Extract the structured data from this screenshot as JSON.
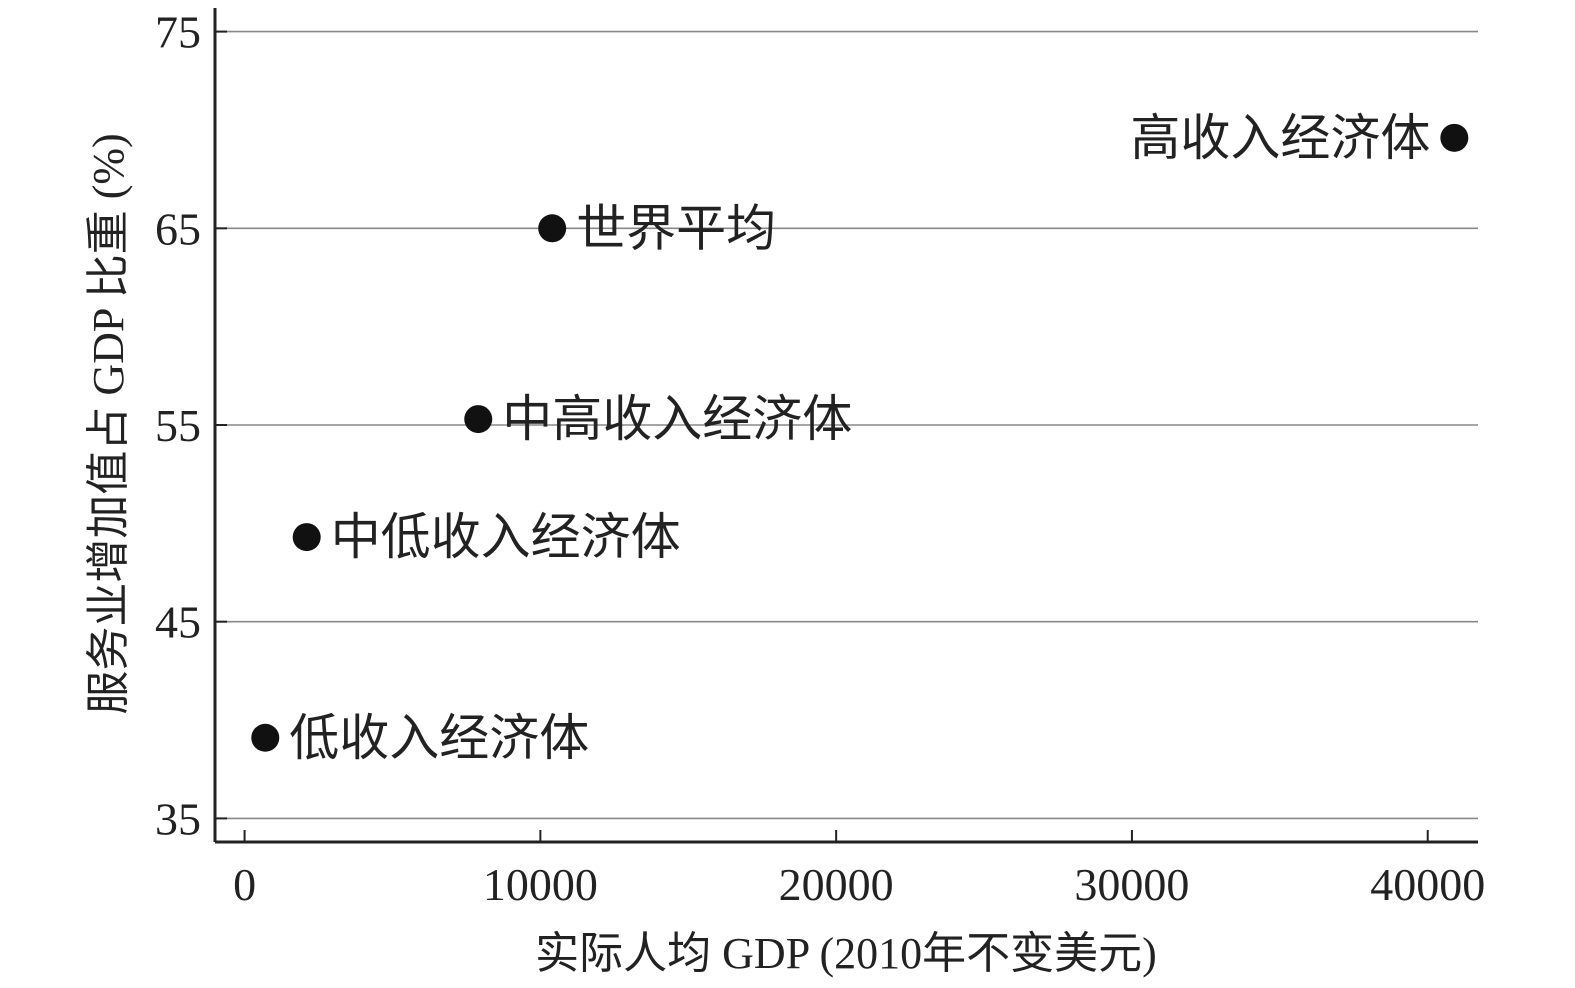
{
  "chart_data": {
    "type": "scatter",
    "title": "",
    "xlabel": "实际人均 GDP (2010年不变美元)",
    "ylabel": "服务业增加值占 GDP 比重 (%)",
    "xlim": [
      -1000,
      41700
    ],
    "ylim": [
      33.8,
      76.2
    ],
    "xticks": [
      0,
      10000,
      20000,
      30000,
      40000
    ],
    "xtick_labels": [
      "0",
      "10000",
      "20000",
      "30000",
      "40000"
    ],
    "yticks": [
      35,
      45,
      55,
      65,
      75
    ],
    "ytick_labels": [
      "35",
      "45",
      "55",
      "65",
      "75"
    ],
    "grid": "horizontal",
    "colors": {
      "axis": "#222222",
      "grid": "#888888",
      "point": "#111111",
      "text": "#222222"
    },
    "points": [
      {
        "label": "低收入经济体",
        "x": 700,
        "y": 39.1,
        "label_side": "right"
      },
      {
        "label": "中低收入经济体",
        "x": 2100,
        "y": 49.3,
        "label_side": "right"
      },
      {
        "label": "中高收入经济体",
        "x": 7900,
        "y": 55.3,
        "label_side": "right"
      },
      {
        "label": "世界平均",
        "x": 10400,
        "y": 65.0,
        "label_side": "right"
      },
      {
        "label": "高收入经济体",
        "x": 40900,
        "y": 69.6,
        "label_side": "left"
      }
    ]
  }
}
